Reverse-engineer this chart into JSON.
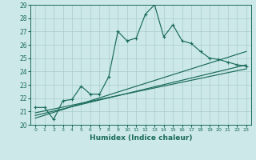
{
  "title": "",
  "xlabel": "Humidex (Indice chaleur)",
  "ylabel": "",
  "bg_color": "#cce8e8",
  "grid_color": "#aacccc",
  "line_color": "#1a6b5a",
  "xlim": [
    -0.5,
    23.5
  ],
  "ylim": [
    20,
    29
  ],
  "xticks": [
    0,
    1,
    2,
    3,
    4,
    5,
    6,
    7,
    8,
    9,
    10,
    11,
    12,
    13,
    14,
    15,
    16,
    17,
    18,
    19,
    20,
    21,
    22,
    23
  ],
  "yticks": [
    20,
    21,
    22,
    23,
    24,
    25,
    26,
    27,
    28,
    29
  ],
  "series1_x": [
    0,
    1,
    2,
    3,
    4,
    5,
    6,
    7,
    8,
    9,
    10,
    11,
    12,
    13,
    14,
    15,
    16,
    17,
    18,
    19,
    20,
    21,
    22,
    23
  ],
  "series1_y": [
    21.3,
    21.3,
    20.4,
    21.8,
    21.9,
    22.9,
    22.3,
    22.3,
    23.6,
    27.0,
    26.3,
    26.5,
    28.3,
    29.0,
    26.6,
    27.5,
    26.3,
    26.1,
    25.5,
    25.0,
    24.9,
    24.7,
    24.5,
    24.4
  ],
  "series2_x": [
    0,
    23
  ],
  "series2_y": [
    20.5,
    25.5
  ],
  "series3_x": [
    0,
    23
  ],
  "series3_y": [
    20.7,
    24.5
  ],
  "series4_x": [
    0,
    23
  ],
  "series4_y": [
    20.9,
    24.2
  ]
}
